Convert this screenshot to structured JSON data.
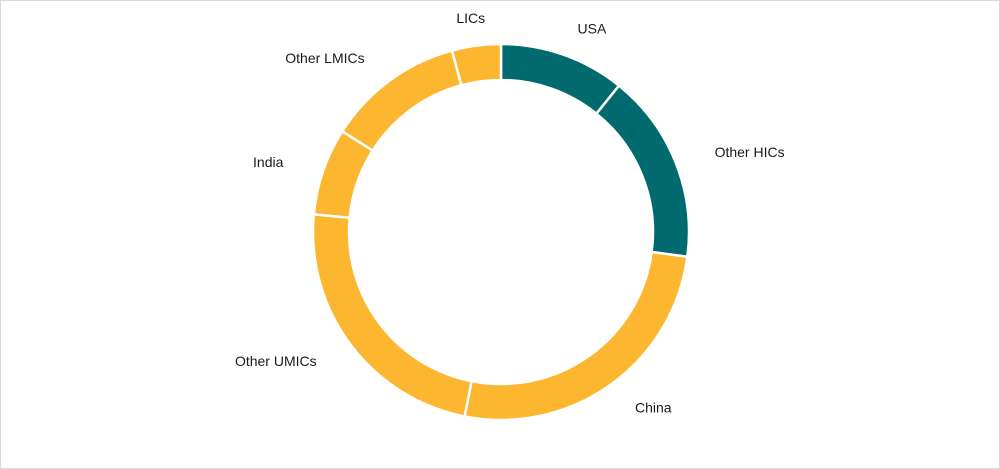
{
  "chart_data": {
    "type": "pie",
    "donut": true,
    "title": "",
    "categories": [
      "USA",
      "Other HICs",
      "China",
      "Other UMICs",
      "India",
      "Other LMICs",
      "LICs"
    ],
    "values": [
      10.8,
      16.3,
      26.0,
      23.4,
      7.5,
      11.8,
      4.2
    ],
    "unit": "%",
    "colors": [
      "#006a6e",
      "#006a6e",
      "#fdb62f",
      "#fdb62f",
      "#fdb62f",
      "#fdb62f",
      "#fdb62f"
    ],
    "legend": "none"
  }
}
